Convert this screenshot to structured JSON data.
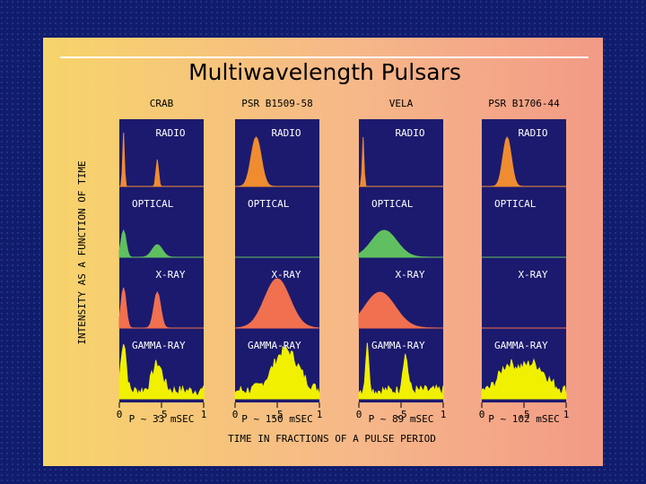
{
  "title": "Multiwavelength Pulsars",
  "y_axis_label": "INTENSITY AS A FUNCTION OF TIME",
  "x_axis_label": "TIME IN FRACTIONS OF A PULSE PERIOD",
  "panels": [
    {
      "name": "CRAB",
      "bands": [
        "RADIO",
        "OPTICAL",
        "X-RAY",
        "GAMMA-RAY"
      ],
      "ticks": [
        "0",
        ".5",
        "1"
      ],
      "period": "P ~ 33 mSEC"
    },
    {
      "name": "PSR B1509-58",
      "bands": [
        "RADIO",
        "OPTICAL",
        "X-RAY",
        "GAMMA-RAY"
      ],
      "ticks": [
        "0",
        ".5",
        "1"
      ],
      "period": "P ~ 150 mSEC"
    },
    {
      "name": "VELA",
      "bands": [
        "RADIO",
        "OPTICAL",
        "X-RAY",
        "GAMMA-RAY"
      ],
      "ticks": [
        "0",
        ".5",
        "1"
      ],
      "period": "P ~ 89 mSEC"
    },
    {
      "name": "PSR B1706-44",
      "bands": [
        "RADIO",
        "OPTICAL",
        "X-RAY",
        "GAMMA-RAY"
      ],
      "ticks": [
        "0",
        ".5",
        "1"
      ],
      "period": "P ~ 102 mSEC"
    }
  ]
}
